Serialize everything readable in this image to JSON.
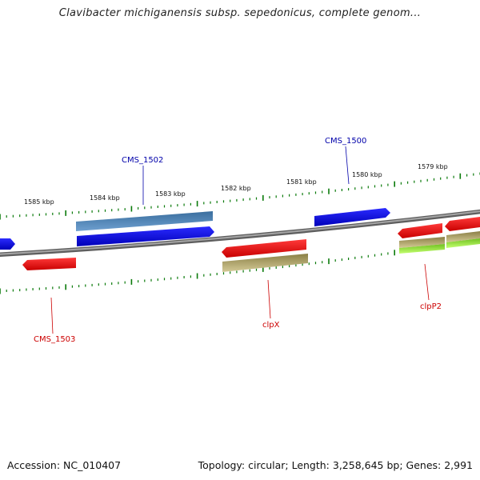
{
  "title": "Clavibacter michiganensis subsp. sepedonicus, complete genom...",
  "footer": {
    "accession": "Accession: NC_010407",
    "stats": "Topology: circular; Length: 3,258,645 bp; Genes: 2,991"
  },
  "ruler_labels": [
    "1585 kbp",
    "1584 kbp",
    "1583 kbp",
    "1582 kbp",
    "1581 kbp",
    "1580 kbp",
    "1579 kbp"
  ],
  "gene_labels": {
    "cms1502": "CMS_1502",
    "cms1500": "CMS_1500",
    "cms1503": "CMS_1503",
    "clpx": "clpX",
    "clpp2": "clpP2"
  },
  "colors": {
    "forward_strand_label": "#0000aa",
    "reverse_strand_label": "#cc0000",
    "gene_blue": "#0a0ae0",
    "gene_red": "#ee1111",
    "gene_steel": "#4a7fb0",
    "gene_olive": "#b3a970",
    "gene_lime": "#99ee33",
    "backbone": "#7a7a7a",
    "ticks": "#0a7a0a"
  }
}
